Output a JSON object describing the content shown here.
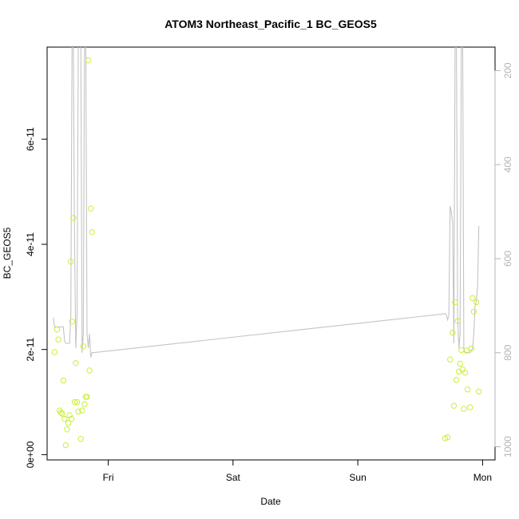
{
  "chart_data": {
    "type": "scatter",
    "title": "ATOM3 Northeast_Pacific_1 BC_GEOS5",
    "xlabel": "Date",
    "ylabel": "BC_GEOS5",
    "x_ticks": [
      {
        "value": 1.0,
        "label": "Fri"
      },
      {
        "value": 2.0,
        "label": "Sat"
      },
      {
        "value": 3.0,
        "label": "Sun"
      },
      {
        "value": 4.0,
        "label": "Mon"
      }
    ],
    "xlim": [
      0.51,
      4.1
    ],
    "y_ticks": [
      {
        "value": 0,
        "label": "0e+00"
      },
      {
        "value": 2e-11,
        "label": "2e-11"
      },
      {
        "value": 4e-11,
        "label": "4e-11"
      },
      {
        "value": 6e-11,
        "label": "6e-11"
      }
    ],
    "ylim": [
      -1e-12,
      7.75e-11
    ],
    "y2_ticks": [
      {
        "value": 200,
        "label": "200"
      },
      {
        "value": 400,
        "label": "400"
      },
      {
        "value": 600,
        "label": "600"
      },
      {
        "value": 800,
        "label": "800"
      },
      {
        "value": 1000,
        "label": "1000"
      }
    ],
    "y2lim": [
      1028,
      150
    ],
    "colors": {
      "points": "#c8f03c",
      "line": "#c4c4c4",
      "axis": "#000000",
      "axis2": "#b4b4b4"
    },
    "series": [
      {
        "type": "scatter",
        "axis": "left",
        "points": [
          [
            0.57,
            1.95e-11
          ],
          [
            0.59,
            2.38e-11
          ],
          [
            0.6,
            2.19e-11
          ],
          [
            0.61,
            8.4e-12
          ],
          [
            0.62,
            8e-12
          ],
          [
            0.63,
            7.8e-12
          ],
          [
            0.64,
            1.41e-11
          ],
          [
            0.65,
            6.8e-12
          ],
          [
            0.66,
            1.8e-12
          ],
          [
            0.67,
            4.8e-12
          ],
          [
            0.68,
            6e-12
          ],
          [
            0.69,
            7.5e-12
          ],
          [
            0.7,
            3.67e-11
          ],
          [
            0.705,
            6.8e-12
          ],
          [
            0.71,
            2.53e-11
          ],
          [
            0.72,
            4.5e-11
          ],
          [
            0.73,
            1e-11
          ],
          [
            0.74,
            1.74e-11
          ],
          [
            0.75,
            1e-11
          ],
          [
            0.76,
            8.2e-12
          ],
          [
            0.78,
            3e-12
          ],
          [
            0.79,
            8.4e-12
          ],
          [
            0.8,
            2.06e-11
          ],
          [
            0.81,
            9.6e-12
          ],
          [
            0.82,
            1.1e-11
          ],
          [
            0.83,
            1.1e-11
          ],
          [
            0.84,
            7.5e-11
          ],
          [
            0.85,
            1.6e-11
          ],
          [
            0.86,
            4.68e-11
          ],
          [
            0.87,
            4.23e-11
          ],
          [
            3.7,
            3.1e-12
          ],
          [
            3.72,
            3.3e-12
          ],
          [
            3.74,
            1.81e-11
          ],
          [
            3.76,
            2.32e-11
          ],
          [
            3.77,
            9.3e-12
          ],
          [
            3.78,
            2.9e-11
          ],
          [
            3.79,
            1.42e-11
          ],
          [
            3.8,
            2.54e-11
          ],
          [
            3.81,
            1.58e-11
          ],
          [
            3.82,
            1.73e-11
          ],
          [
            3.83,
            1.99e-11
          ],
          [
            3.84,
            1.62e-11
          ],
          [
            3.85,
            8.7e-12
          ],
          [
            3.86,
            1.56e-11
          ],
          [
            3.87,
            1.98e-11
          ],
          [
            3.88,
            1.24e-11
          ],
          [
            3.9,
            9e-12
          ],
          [
            3.91,
            2.02e-11
          ],
          [
            3.92,
            2.98e-11
          ],
          [
            3.93,
            2.72e-11
          ],
          [
            3.95,
            2.9e-11
          ],
          [
            3.97,
            1.2e-11
          ]
        ]
      },
      {
        "type": "line",
        "axis": "right",
        "points": [
          [
            0.56,
            725
          ],
          [
            0.57,
            745
          ],
          [
            0.62,
            745
          ],
          [
            0.64,
            745
          ],
          [
            0.65,
            775
          ],
          [
            0.66,
            780
          ],
          [
            0.69,
            780
          ],
          [
            0.7,
            720
          ],
          [
            0.71,
            125
          ],
          [
            0.72,
            125
          ],
          [
            0.73,
            570
          ],
          [
            0.74,
            790
          ],
          [
            0.75,
            720
          ],
          [
            0.76,
            125
          ],
          [
            0.78,
            125
          ],
          [
            0.79,
            800
          ],
          [
            0.8,
            760
          ],
          [
            0.81,
            120
          ],
          [
            0.82,
            120
          ],
          [
            0.83,
            760
          ],
          [
            0.84,
            790
          ],
          [
            0.85,
            760
          ],
          [
            0.86,
            810
          ],
          [
            0.87,
            800
          ],
          [
            0.88,
            800
          ],
          [
            3.7,
            717
          ],
          [
            3.71,
            720
          ],
          [
            3.72,
            730
          ],
          [
            3.73,
            720
          ],
          [
            3.74,
            488
          ],
          [
            3.75,
            500
          ],
          [
            3.76,
            525
          ],
          [
            3.77,
            780
          ],
          [
            3.78,
            120
          ],
          [
            3.79,
            120
          ],
          [
            3.8,
            720
          ],
          [
            3.81,
            790
          ],
          [
            3.82,
            760
          ],
          [
            3.83,
            120
          ],
          [
            3.84,
            120
          ],
          [
            3.85,
            790
          ],
          [
            3.86,
            800
          ],
          [
            3.87,
            800
          ],
          [
            3.88,
            800
          ],
          [
            3.9,
            800
          ],
          [
            3.92,
            790
          ],
          [
            3.93,
            760
          ],
          [
            3.94,
            700
          ],
          [
            3.95,
            690
          ],
          [
            3.96,
            660
          ],
          [
            3.97,
            530
          ]
        ]
      }
    ]
  }
}
